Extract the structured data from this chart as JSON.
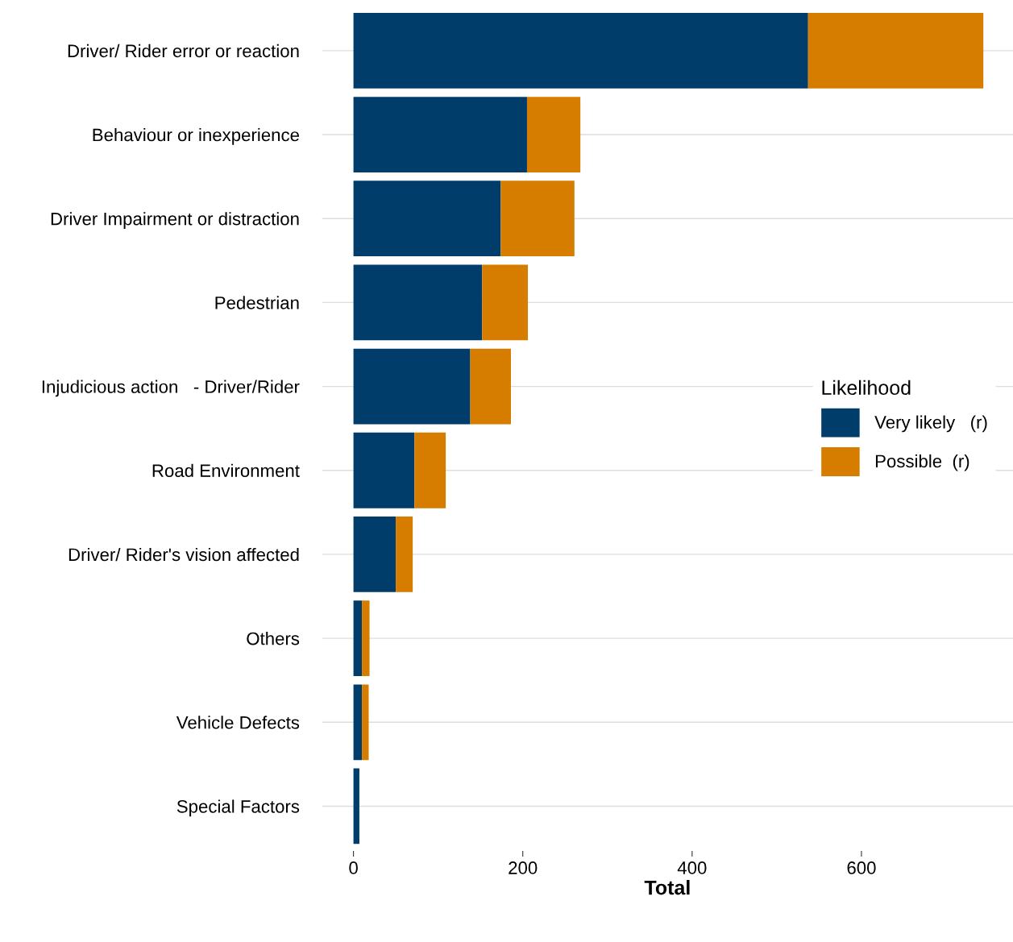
{
  "chart_data": {
    "type": "bar",
    "orientation": "horizontal",
    "stacked": true,
    "categories": [
      "Driver/ Rider error or reaction",
      "Behaviour or inexperience",
      "Driver Impairment or distraction",
      "Pedestrian",
      "Injudicious action   - Driver/Rider",
      "Road Environment",
      "Driver/ Rider's vision affected",
      "Others",
      "Vehicle Defects",
      "Special Factors"
    ],
    "series": [
      {
        "name": "Very likely   (r)",
        "color": "#003d6b",
        "values": [
          537,
          205,
          174,
          152,
          138,
          72,
          50,
          10,
          10,
          7
        ]
      },
      {
        "name": "Possible  (r)",
        "color": "#d67d00",
        "values": [
          207,
          63,
          87,
          54,
          48,
          37,
          20,
          9,
          8,
          0
        ]
      }
    ],
    "xlabel": "Total",
    "legend_title": "Likelihood",
    "legend": "right",
    "xlim": [
      -37,
      779
    ],
    "xticks": [
      0,
      200,
      400,
      600
    ],
    "grid": "y"
  }
}
